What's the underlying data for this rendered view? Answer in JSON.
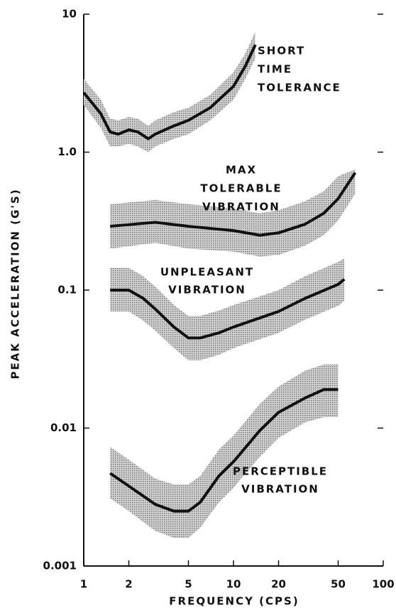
{
  "chart_data": {
    "type": "line",
    "log_x": true,
    "log_y": true,
    "xlabel": "FREQUENCY (CPS)",
    "ylabel": "PEAK ACCELERATION (G'S)",
    "xlim": [
      1,
      100
    ],
    "ylim": [
      0.001,
      10
    ],
    "xticks": [
      1,
      2,
      5,
      10,
      20,
      50,
      100
    ],
    "yticks": [
      {
        "value": 0.001,
        "label": "0.001"
      },
      0.01,
      0.1,
      {
        "value": 1,
        "label": "1.0"
      },
      10
    ],
    "series": [
      {
        "name_lines": [
          "SHORT",
          "TIME",
          "TOLERANCE"
        ],
        "color": "#111",
        "x": [
          1,
          1.3,
          1.5,
          1.7,
          2,
          2.3,
          2.7,
          3,
          4,
          5,
          7,
          10,
          12,
          14
        ],
        "values": [
          2.7,
          1.9,
          1.4,
          1.35,
          1.45,
          1.4,
          1.25,
          1.35,
          1.55,
          1.7,
          2.1,
          3.0,
          4.2,
          6.0
        ],
        "lower": [
          2.2,
          1.5,
          1.1,
          1.1,
          1.15,
          1.1,
          1.0,
          1.1,
          1.25,
          1.35,
          1.7,
          2.4,
          3.4,
          4.8
        ],
        "upper": [
          3.4,
          2.4,
          1.75,
          1.7,
          1.8,
          1.75,
          1.55,
          1.7,
          1.95,
          2.1,
          2.6,
          3.8,
          5.2,
          7.5
        ]
      },
      {
        "name_lines": [
          "MAX",
          "TOLERABLE",
          "VIBRATION"
        ],
        "color": "#111",
        "x": [
          1.5,
          3,
          5,
          10,
          15,
          20,
          30,
          40,
          50,
          65
        ],
        "values": [
          0.29,
          0.31,
          0.29,
          0.27,
          0.25,
          0.26,
          0.3,
          0.36,
          0.46,
          0.71
        ],
        "lower": [
          0.2,
          0.22,
          0.2,
          0.19,
          0.175,
          0.18,
          0.21,
          0.25,
          0.32,
          0.5
        ],
        "upper": [
          0.42,
          0.45,
          0.42,
          0.39,
          0.36,
          0.38,
          0.44,
          0.52,
          0.67,
          0.75
        ]
      },
      {
        "name_lines": [
          "UNPLEASANT",
          "VIBRATION"
        ],
        "color": "#111",
        "x": [
          1.5,
          2,
          2.5,
          3,
          4,
          5,
          6,
          8,
          10,
          20,
          30,
          50,
          55
        ],
        "values": [
          0.1,
          0.1,
          0.087,
          0.073,
          0.054,
          0.045,
          0.045,
          0.049,
          0.054,
          0.07,
          0.087,
          0.11,
          0.12
        ],
        "lower": [
          0.07,
          0.07,
          0.06,
          0.051,
          0.038,
          0.031,
          0.031,
          0.034,
          0.038,
          0.049,
          0.061,
          0.077,
          0.084
        ],
        "upper": [
          0.145,
          0.145,
          0.126,
          0.106,
          0.078,
          0.065,
          0.065,
          0.071,
          0.078,
          0.1,
          0.126,
          0.16,
          0.17
        ]
      },
      {
        "name_lines": [
          "PERCEPTIBLE",
          "VIBRATION"
        ],
        "color": "#111",
        "x": [
          1.5,
          2,
          3,
          4,
          5,
          6,
          8,
          10,
          15,
          20,
          30,
          40,
          50
        ],
        "values": [
          0.0047,
          0.0038,
          0.0028,
          0.0025,
          0.0025,
          0.0029,
          0.0045,
          0.0057,
          0.0096,
          0.013,
          0.0165,
          0.019,
          0.019
        ],
        "lower": [
          0.0031,
          0.0025,
          0.0018,
          0.0016,
          0.0016,
          0.0019,
          0.0029,
          0.0037,
          0.0062,
          0.0085,
          0.011,
          0.012,
          0.012
        ],
        "upper": [
          0.0073,
          0.0059,
          0.0043,
          0.0039,
          0.0039,
          0.0045,
          0.007,
          0.0088,
          0.015,
          0.02,
          0.026,
          0.029,
          0.029
        ]
      }
    ]
  }
}
